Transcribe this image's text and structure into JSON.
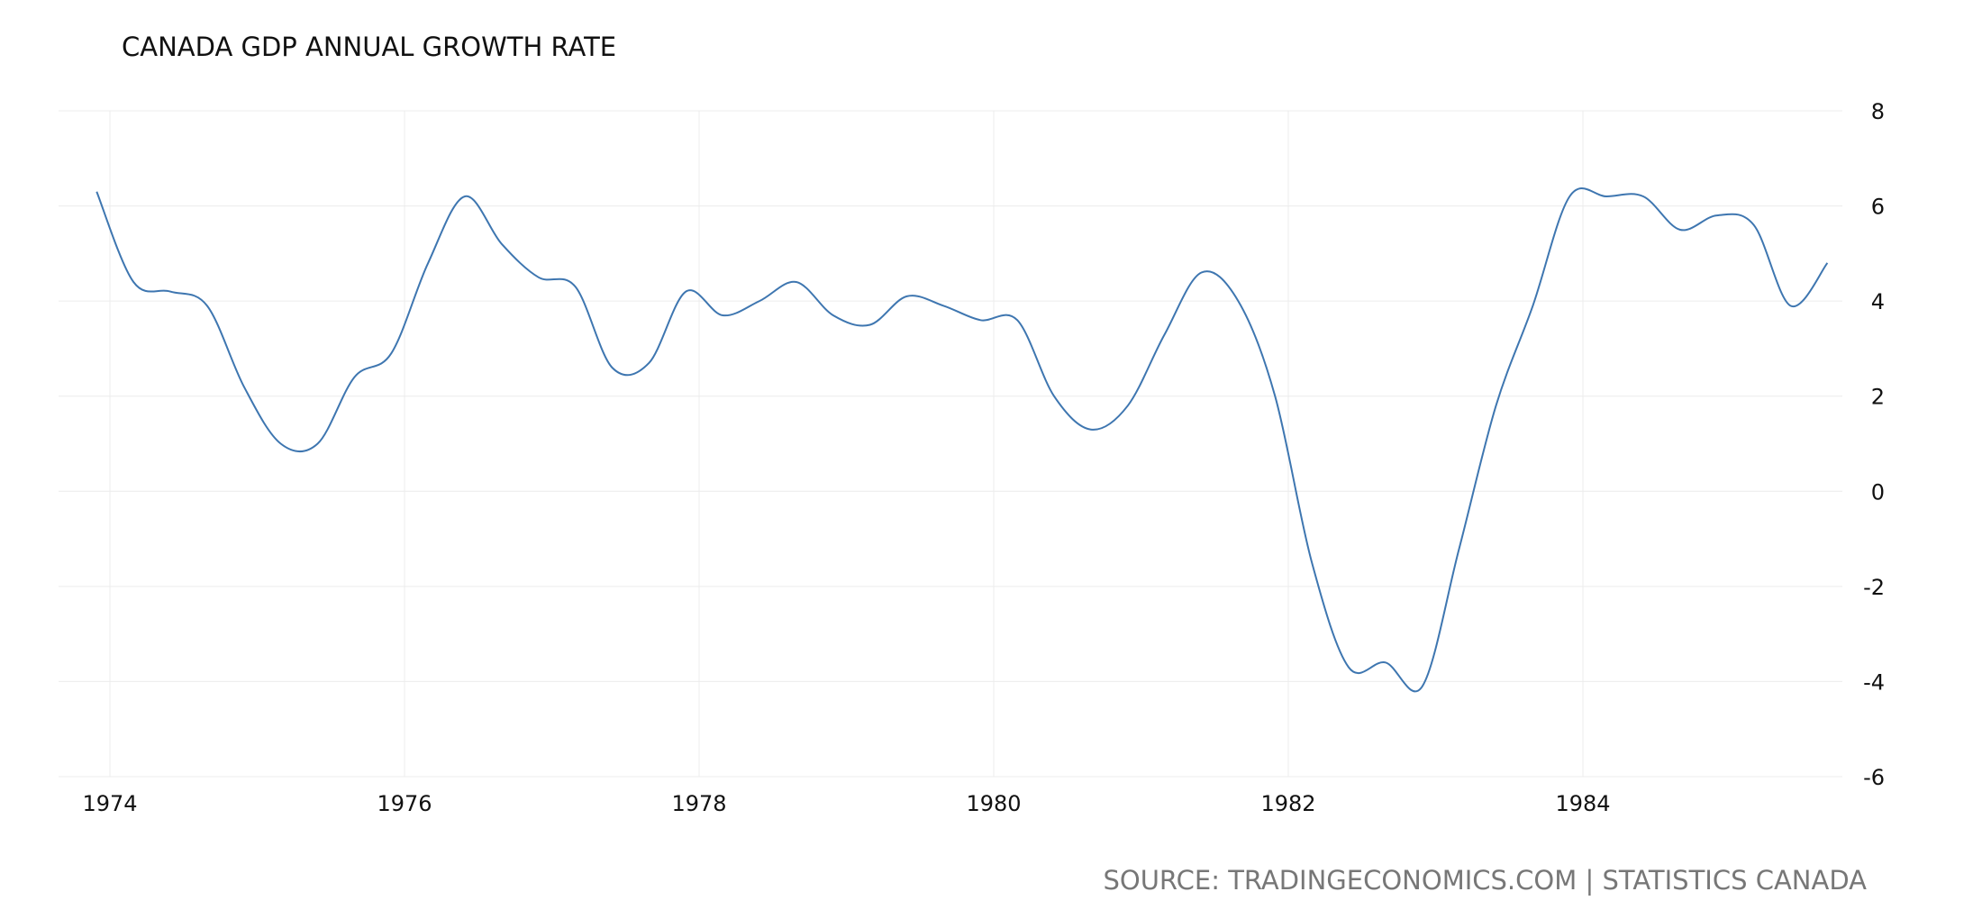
{
  "chart_data": {
    "type": "line",
    "title": "CANADA GDP ANNUAL GROWTH RATE",
    "source": "SOURCE: TRADINGECONOMICS.COM | STATISTICS CANADA",
    "xlabel": "",
    "ylabel": "",
    "xlim": [
      1974.0,
      1985.75
    ],
    "ylim": [
      -6,
      8
    ],
    "x_ticks": [
      1974,
      1976,
      1978,
      1980,
      1982,
      1984
    ],
    "y_ticks": [
      -6,
      -4,
      -2,
      0,
      2,
      4,
      6,
      8
    ],
    "grid": true,
    "y_axis_side": "right",
    "line_color": "#3e76b0",
    "series": [
      {
        "name": "GDP Annual Growth Rate",
        "x": [
          1973.91,
          1974.16,
          1974.41,
          1974.66,
          1974.91,
          1975.16,
          1975.41,
          1975.66,
          1975.91,
          1976.16,
          1976.41,
          1976.66,
          1976.91,
          1977.16,
          1977.41,
          1977.66,
          1977.91,
          1978.16,
          1978.41,
          1978.66,
          1978.91,
          1979.16,
          1979.41,
          1979.66,
          1979.91,
          1980.16,
          1980.41,
          1980.66,
          1980.91,
          1981.16,
          1981.41,
          1981.66,
          1981.91,
          1982.16,
          1982.41,
          1982.66,
          1982.91,
          1983.16,
          1983.41,
          1983.66,
          1983.91,
          1984.16,
          1984.41,
          1984.66,
          1984.91,
          1985.16,
          1985.41,
          1985.66
        ],
        "values": [
          6.3,
          4.4,
          4.2,
          3.9,
          2.2,
          1.0,
          1.0,
          2.4,
          2.9,
          4.8,
          6.2,
          5.2,
          4.5,
          4.3,
          2.6,
          2.7,
          4.2,
          3.7,
          4.0,
          4.4,
          3.7,
          3.5,
          4.1,
          3.9,
          3.6,
          3.6,
          2.0,
          1.3,
          1.8,
          3.3,
          4.6,
          4.0,
          2.0,
          -1.5,
          -3.7,
          -3.6,
          -4.1,
          -1.2,
          1.8,
          3.9,
          6.2,
          6.2,
          6.2,
          5.5,
          5.8,
          5.6,
          3.9,
          4.8
        ]
      }
    ]
  }
}
